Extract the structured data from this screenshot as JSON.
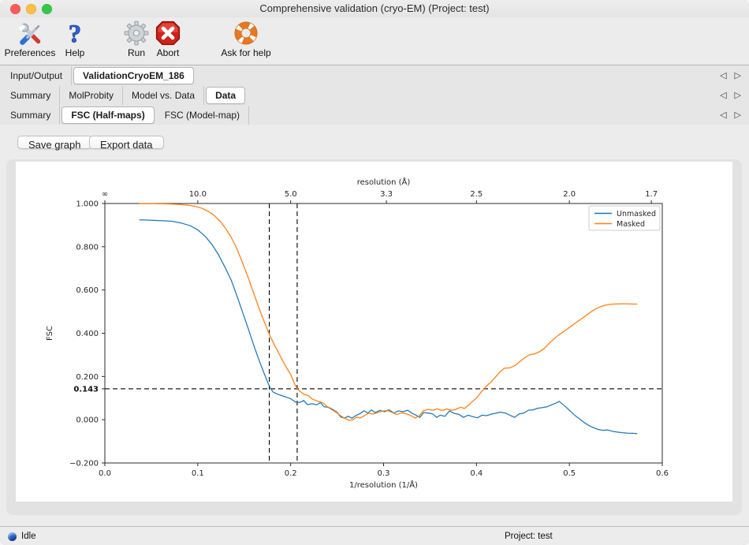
{
  "window": {
    "title": "Comprehensive validation (cryo-EM) (Project: test)"
  },
  "colors": {
    "traffic_red": "#fc5b57",
    "traffic_yellow": "#fdbe41",
    "traffic_green": "#34c84a",
    "status_blue": "#1e62d0",
    "accent_blue": "#1f77b4",
    "accent_orange": "#ff7f0e"
  },
  "toolbar": {
    "items": [
      {
        "label": "Preferences",
        "icon": "tools-icon"
      },
      {
        "label": "Help",
        "icon": "question-icon"
      },
      {
        "label": "Run",
        "icon": "gear-icon"
      },
      {
        "label": "Abort",
        "icon": "abort-icon"
      },
      {
        "label": "Ask for help",
        "icon": "lifebuoy-icon"
      }
    ]
  },
  "tab_scroller": {
    "left": "◁",
    "right": "▷"
  },
  "tab_rows": [
    {
      "tabs": [
        {
          "label": "Input/Output",
          "selected": false
        },
        {
          "label": "ValidationCryoEM_186",
          "selected": true
        }
      ]
    },
    {
      "tabs": [
        {
          "label": "Summary",
          "selected": false
        },
        {
          "label": "MolProbity",
          "selected": false
        },
        {
          "label": "Model vs. Data",
          "selected": false
        },
        {
          "label": "Data",
          "selected": true
        }
      ]
    },
    {
      "tabs": [
        {
          "label": "Summary",
          "selected": false
        },
        {
          "label": "FSC (Half-maps)",
          "selected": true
        },
        {
          "label": "FSC (Model-map)",
          "selected": false
        }
      ]
    }
  ],
  "buttons": {
    "save_graph": "Save graph",
    "export_data": "Export data"
  },
  "status_bar": {
    "left": "Idle",
    "right": "Project: test"
  },
  "chart_data": {
    "type": "line",
    "xlabel": "1/resolution (1/Å)",
    "ylabel": "FSC",
    "xlim": [
      0.0,
      0.6
    ],
    "ylim": [
      -0.2,
      1.0
    ],
    "grid": false,
    "legend_position": "upper right",
    "top_axis": {
      "label": "resolution (Å)",
      "ticks": [
        {
          "pos": 0.0,
          "label": "∞"
        },
        {
          "pos": 0.1,
          "label": "10.0"
        },
        {
          "pos": 0.2,
          "label": "5.0"
        },
        {
          "pos": 0.30303,
          "label": "3.3"
        },
        {
          "pos": 0.4,
          "label": "2.5"
        },
        {
          "pos": 0.5,
          "label": "2.0"
        },
        {
          "pos": 0.58824,
          "label": "1.7"
        }
      ]
    },
    "xticks": [
      {
        "v": 0.0,
        "label": "0.0"
      },
      {
        "v": 0.1,
        "label": "0.1"
      },
      {
        "v": 0.2,
        "label": "0.2"
      },
      {
        "v": 0.3,
        "label": "0.3"
      },
      {
        "v": 0.4,
        "label": "0.4"
      },
      {
        "v": 0.5,
        "label": "0.5"
      },
      {
        "v": 0.6,
        "label": "0.6"
      }
    ],
    "yticks": [
      {
        "v": 1.0,
        "label": "1.000",
        "bold": false
      },
      {
        "v": 0.8,
        "label": "0.800",
        "bold": false
      },
      {
        "v": 0.6,
        "label": "0.600",
        "bold": false
      },
      {
        "v": 0.4,
        "label": "0.400",
        "bold": false
      },
      {
        "v": 0.2,
        "label": "0.200",
        "bold": false
      },
      {
        "v": 0.143,
        "label": "0.143",
        "bold": true
      },
      {
        "v": 0.0,
        "label": "0.000",
        "bold": false
      },
      {
        "v": -0.2,
        "label": "−0.200",
        "bold": false
      }
    ],
    "threshold": {
      "y": 0.143,
      "vlines": [
        0.177,
        0.207
      ]
    },
    "series": [
      {
        "name": "Unmasked",
        "color": "#1f77b4",
        "points": [
          [
            0.037,
            0.924
          ],
          [
            0.048,
            0.923
          ],
          [
            0.06,
            0.921
          ],
          [
            0.072,
            0.918
          ],
          [
            0.082,
            0.91
          ],
          [
            0.092,
            0.897
          ],
          [
            0.1,
            0.878
          ],
          [
            0.108,
            0.848
          ],
          [
            0.115,
            0.812
          ],
          [
            0.122,
            0.765
          ],
          [
            0.129,
            0.708
          ],
          [
            0.136,
            0.645
          ],
          [
            0.142,
            0.575
          ],
          [
            0.148,
            0.5
          ],
          [
            0.154,
            0.425
          ],
          [
            0.16,
            0.348
          ],
          [
            0.166,
            0.275
          ],
          [
            0.172,
            0.208
          ],
          [
            0.177,
            0.155
          ],
          [
            0.181,
            0.128
          ],
          [
            0.185,
            0.12
          ],
          [
            0.19,
            0.112
          ],
          [
            0.195,
            0.105
          ],
          [
            0.2,
            0.097
          ],
          [
            0.205,
            0.082
          ],
          [
            0.21,
            0.08
          ],
          [
            0.214,
            0.089
          ],
          [
            0.218,
            0.07
          ],
          [
            0.223,
            0.074
          ],
          [
            0.228,
            0.069
          ],
          [
            0.232,
            0.079
          ],
          [
            0.236,
            0.06
          ],
          [
            0.241,
            0.057
          ],
          [
            0.246,
            0.046
          ],
          [
            0.25,
            0.034
          ],
          [
            0.254,
            0.012
          ],
          [
            0.258,
            0.008
          ],
          [
            0.262,
            0.016
          ],
          [
            0.266,
            0.007
          ],
          [
            0.27,
            0.019
          ],
          [
            0.275,
            0.029
          ],
          [
            0.279,
            0.041
          ],
          [
            0.283,
            0.031
          ],
          [
            0.287,
            0.045
          ],
          [
            0.291,
            0.033
          ],
          [
            0.296,
            0.043
          ],
          [
            0.301,
            0.037
          ],
          [
            0.306,
            0.046
          ],
          [
            0.311,
            0.031
          ],
          [
            0.316,
            0.041
          ],
          [
            0.321,
            0.037
          ],
          [
            0.326,
            0.044
          ],
          [
            0.331,
            0.029
          ],
          [
            0.335,
            0.021
          ],
          [
            0.339,
            0.011
          ],
          [
            0.343,
            0.033
          ],
          [
            0.348,
            0.031
          ],
          [
            0.353,
            0.027
          ],
          [
            0.357,
            0.011
          ],
          [
            0.361,
            0.021
          ],
          [
            0.366,
            0.016
          ],
          [
            0.371,
            0.041
          ],
          [
            0.376,
            0.029
          ],
          [
            0.381,
            0.025
          ],
          [
            0.386,
            0.011
          ],
          [
            0.391,
            0.021
          ],
          [
            0.396,
            0.014
          ],
          [
            0.401,
            0.009
          ],
          [
            0.406,
            0.021
          ],
          [
            0.411,
            0.019
          ],
          [
            0.416,
            0.026
          ],
          [
            0.421,
            0.03
          ],
          [
            0.426,
            0.035
          ],
          [
            0.431,
            0.031
          ],
          [
            0.436,
            0.021
          ],
          [
            0.441,
            0.011
          ],
          [
            0.446,
            0.027
          ],
          [
            0.451,
            0.031
          ],
          [
            0.456,
            0.044
          ],
          [
            0.461,
            0.046
          ],
          [
            0.466,
            0.053
          ],
          [
            0.471,
            0.056
          ],
          [
            0.476,
            0.06
          ],
          [
            0.481,
            0.069
          ],
          [
            0.486,
            0.078
          ],
          [
            0.489,
            0.085
          ],
          [
            0.493,
            0.071
          ],
          [
            0.497,
            0.056
          ],
          [
            0.501,
            0.04
          ],
          [
            0.506,
            0.02
          ],
          [
            0.511,
            0.004
          ],
          [
            0.516,
            -0.013
          ],
          [
            0.521,
            -0.027
          ],
          [
            0.526,
            -0.037
          ],
          [
            0.531,
            -0.045
          ],
          [
            0.536,
            -0.049
          ],
          [
            0.541,
            -0.047
          ],
          [
            0.546,
            -0.053
          ],
          [
            0.551,
            -0.057
          ],
          [
            0.557,
            -0.06
          ],
          [
            0.563,
            -0.062
          ],
          [
            0.568,
            -0.063
          ],
          [
            0.573,
            -0.064
          ]
        ]
      },
      {
        "name": "Masked",
        "color": "#ff7f0e",
        "points": [
          [
            0.037,
            0.999
          ],
          [
            0.052,
            0.999
          ],
          [
            0.066,
            0.998
          ],
          [
            0.08,
            0.996
          ],
          [
            0.09,
            0.992
          ],
          [
            0.098,
            0.986
          ],
          [
            0.105,
            0.977
          ],
          [
            0.112,
            0.962
          ],
          [
            0.118,
            0.944
          ],
          [
            0.124,
            0.918
          ],
          [
            0.13,
            0.884
          ],
          [
            0.136,
            0.843
          ],
          [
            0.142,
            0.792
          ],
          [
            0.148,
            0.728
          ],
          [
            0.154,
            0.66
          ],
          [
            0.16,
            0.588
          ],
          [
            0.166,
            0.515
          ],
          [
            0.172,
            0.448
          ],
          [
            0.177,
            0.395
          ],
          [
            0.182,
            0.35
          ],
          [
            0.187,
            0.31
          ],
          [
            0.192,
            0.268
          ],
          [
            0.197,
            0.23
          ],
          [
            0.2,
            0.21
          ],
          [
            0.204,
            0.168
          ],
          [
            0.207,
            0.143
          ],
          [
            0.211,
            0.128
          ],
          [
            0.215,
            0.116
          ],
          [
            0.219,
            0.112
          ],
          [
            0.223,
            0.096
          ],
          [
            0.227,
            0.089
          ],
          [
            0.231,
            0.083
          ],
          [
            0.235,
            0.078
          ],
          [
            0.239,
            0.062
          ],
          [
            0.243,
            0.05
          ],
          [
            0.247,
            0.04
          ],
          [
            0.251,
            0.028
          ],
          [
            0.255,
            0.015
          ],
          [
            0.259,
            0.005
          ],
          [
            0.263,
            -0.003
          ],
          [
            0.267,
            0.0
          ],
          [
            0.271,
            0.012
          ],
          [
            0.275,
            0.008
          ],
          [
            0.279,
            0.018
          ],
          [
            0.284,
            0.03
          ],
          [
            0.289,
            0.026
          ],
          [
            0.294,
            0.034
          ],
          [
            0.299,
            0.04
          ],
          [
            0.304,
            0.043
          ],
          [
            0.309,
            0.034
          ],
          [
            0.314,
            0.024
          ],
          [
            0.319,
            0.032
          ],
          [
            0.324,
            0.028
          ],
          [
            0.329,
            0.02
          ],
          [
            0.334,
            0.008
          ],
          [
            0.338,
            0.016
          ],
          [
            0.343,
            0.042
          ],
          [
            0.348,
            0.048
          ],
          [
            0.353,
            0.044
          ],
          [
            0.358,
            0.05
          ],
          [
            0.363,
            0.043
          ],
          [
            0.368,
            0.05
          ],
          [
            0.373,
            0.044
          ],
          [
            0.378,
            0.048
          ],
          [
            0.383,
            0.058
          ],
          [
            0.387,
            0.052
          ],
          [
            0.391,
            0.065
          ],
          [
            0.395,
            0.082
          ],
          [
            0.4,
            0.1
          ],
          [
            0.405,
            0.128
          ],
          [
            0.41,
            0.152
          ],
          [
            0.415,
            0.172
          ],
          [
            0.42,
            0.195
          ],
          [
            0.425,
            0.22
          ],
          [
            0.43,
            0.238
          ],
          [
            0.436,
            0.24
          ],
          [
            0.442,
            0.252
          ],
          [
            0.447,
            0.27
          ],
          [
            0.452,
            0.287
          ],
          [
            0.457,
            0.3
          ],
          [
            0.463,
            0.305
          ],
          [
            0.468,
            0.315
          ],
          [
            0.473,
            0.33
          ],
          [
            0.478,
            0.352
          ],
          [
            0.483,
            0.372
          ],
          [
            0.488,
            0.39
          ],
          [
            0.493,
            0.405
          ],
          [
            0.498,
            0.42
          ],
          [
            0.503,
            0.436
          ],
          [
            0.508,
            0.452
          ],
          [
            0.513,
            0.466
          ],
          [
            0.518,
            0.482
          ],
          [
            0.523,
            0.498
          ],
          [
            0.528,
            0.512
          ],
          [
            0.533,
            0.522
          ],
          [
            0.538,
            0.529
          ],
          [
            0.543,
            0.533
          ],
          [
            0.548,
            0.535
          ],
          [
            0.555,
            0.536
          ],
          [
            0.562,
            0.536
          ],
          [
            0.568,
            0.535
          ],
          [
            0.573,
            0.535
          ]
        ]
      }
    ]
  }
}
